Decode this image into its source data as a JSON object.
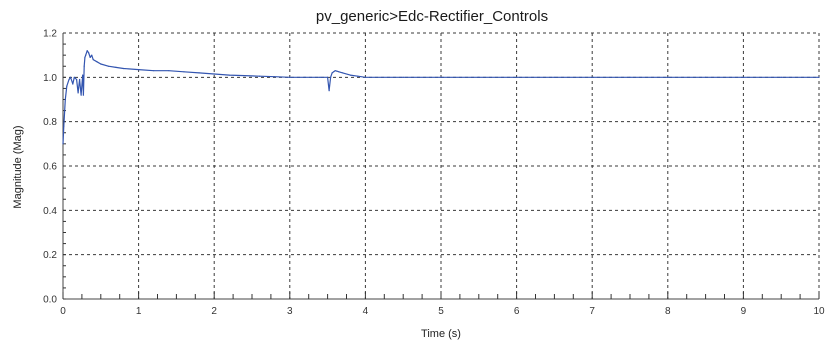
{
  "chart_data": {
    "type": "line",
    "title": "pv_generic>Edc-Rectifier_Controls",
    "xlabel": "Time (s)",
    "ylabel": "Magnitude (Mag)",
    "xlim": [
      0,
      10
    ],
    "ylim": [
      0,
      1.2
    ],
    "xticks": [
      "0",
      "1",
      "2",
      "3",
      "4",
      "5",
      "6",
      "7",
      "8",
      "9",
      "10"
    ],
    "yticks": [
      "0.0",
      "0.2",
      "0.4",
      "0.6",
      "0.8",
      "1.0",
      "1.2"
    ],
    "grid": true,
    "legend": "none",
    "colors": {
      "series": "#3355b0",
      "grid": "#3a3a3a",
      "frame": "#555555"
    },
    "series": [
      {
        "x": [
          0.0,
          0.01,
          0.03,
          0.05,
          0.08,
          0.1,
          0.13,
          0.15,
          0.18,
          0.2,
          0.22,
          0.24,
          0.26,
          0.27,
          0.28,
          0.29,
          0.3,
          0.32,
          0.34,
          0.36,
          0.38,
          0.4,
          0.45,
          0.5,
          0.6,
          0.7,
          0.8,
          1.0,
          1.2,
          1.4,
          1.6,
          1.8,
          2.0,
          2.2,
          2.4,
          2.6,
          2.8,
          3.0,
          3.2,
          3.4,
          3.5,
          3.52,
          3.54,
          3.56,
          3.58,
          3.6,
          3.62,
          3.65,
          3.7,
          3.8,
          3.9,
          4.0,
          4.5,
          5.0,
          5.5,
          6.0,
          6.5,
          7.0,
          7.5,
          8.0,
          8.5,
          9.0,
          9.5,
          10.0
        ],
        "y": [
          0.7,
          0.78,
          0.9,
          0.96,
          0.99,
          1.0,
          0.97,
          1.0,
          0.99,
          0.93,
          0.99,
          0.92,
          1.01,
          0.92,
          1.05,
          1.09,
          1.1,
          1.12,
          1.11,
          1.09,
          1.1,
          1.08,
          1.07,
          1.06,
          1.05,
          1.045,
          1.04,
          1.035,
          1.03,
          1.03,
          1.025,
          1.02,
          1.015,
          1.01,
          1.008,
          1.005,
          1.003,
          1.0,
          1.0,
          1.0,
          1.0,
          0.94,
          1.0,
          1.02,
          1.025,
          1.03,
          1.028,
          1.025,
          1.02,
          1.01,
          1.005,
          1.0,
          1.0,
          1.0,
          1.0,
          1.0,
          1.0,
          1.0,
          1.0,
          1.0,
          1.0,
          1.0,
          1.0,
          1.0
        ]
      }
    ]
  }
}
